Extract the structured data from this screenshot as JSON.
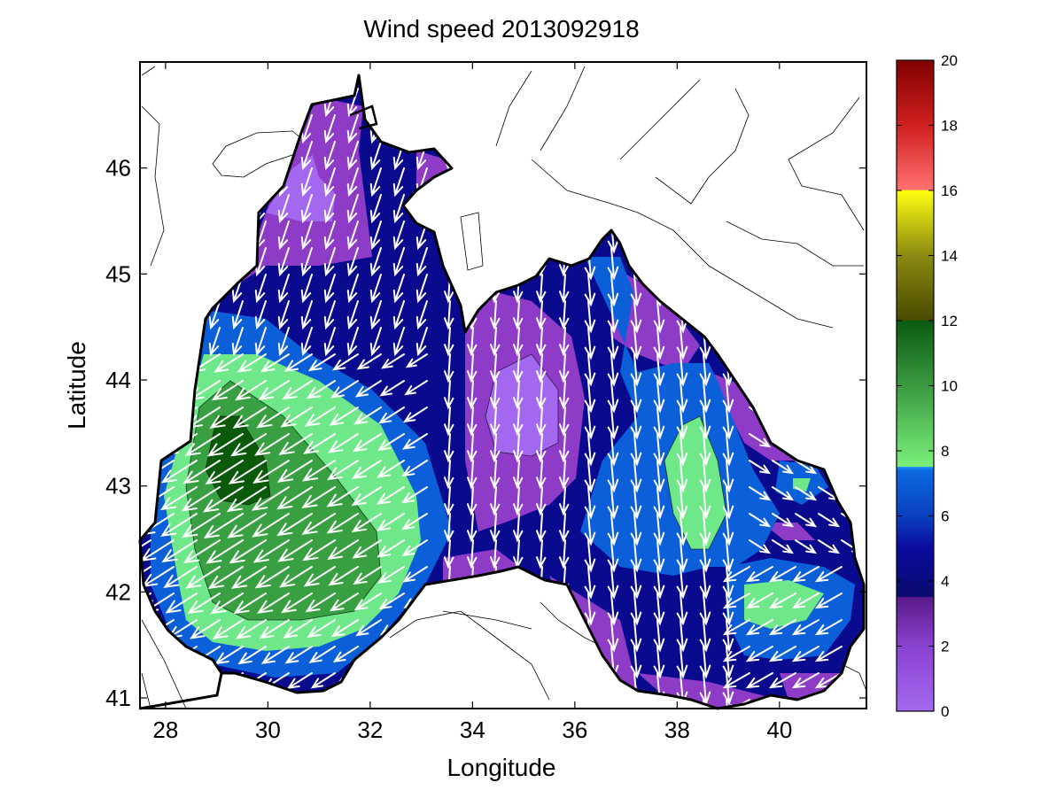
{
  "title": "Wind speed 2013092918",
  "x_axis": {
    "label": "Longitude",
    "ticks": [
      "28",
      "30",
      "32",
      "34",
      "36",
      "38",
      "40"
    ]
  },
  "y_axis": {
    "label": "Latitude",
    "ticks": [
      "41",
      "42",
      "43",
      "44",
      "45",
      "46"
    ]
  },
  "colorbar": {
    "ticks": [
      "0",
      "2",
      "4",
      "6",
      "8",
      "10",
      "12",
      "14",
      "16",
      "18",
      "20"
    ],
    "bands": [
      {
        "from": 0,
        "to": 4,
        "color": "#8e3bc8"
      },
      {
        "from": 4,
        "to": 5,
        "color": "#0a0a8e"
      },
      {
        "from": 5,
        "to": 7,
        "color": "#0b5fd8"
      },
      {
        "from": 7,
        "to": 8,
        "color": "#1e90ff"
      },
      {
        "from": 8,
        "to": 12,
        "color": "#2f9e3f"
      },
      {
        "from": 12,
        "to": 16,
        "color": "#7a7a10"
      },
      {
        "from": 16,
        "to": 20,
        "color": "#c01818"
      }
    ]
  },
  "map_extent": {
    "lon": [
      27.5,
      41.7
    ],
    "lat": [
      40.9,
      47.0
    ]
  },
  "colors": {
    "speed_0_3": "#a468f0",
    "speed_1_3": "#8e3bc8",
    "speed_3_4": "#0a0a8e",
    "speed_4_6": "#0b5fd8",
    "speed_6_8": "#1e78e6",
    "speed_8_9": "#6fe88a",
    "speed_9_11": "#38a040",
    "speed_11_12": "#0a5a0a",
    "vectors": "#ffffff",
    "coast": "#000000"
  }
}
